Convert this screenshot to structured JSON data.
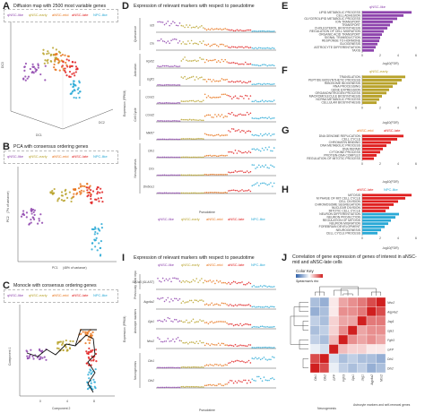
{
  "colors": {
    "qnsc_like": "#8e44ad",
    "qnsc_early": "#b8a22a",
    "ansc_mid": "#e8731a",
    "ansc_late": "#e02020",
    "npc_like": "#2aa9d6"
  },
  "panels": {
    "A": {
      "label": "A",
      "title": "Diffusion map with 2500 most variable genes",
      "axes": [
        "DC1",
        "DC2",
        "DC3"
      ]
    },
    "B": {
      "label": "B",
      "title": "PCA with consensus ordering genes",
      "xlabel": "PC1",
      "xnote": "(48% of variance)",
      "ylabel": "PC2",
      "ynote": "(7% of variance)"
    },
    "C": {
      "label": "C",
      "title": "Monocle with consensus ordering genes",
      "xlabel": "Component 2",
      "ylabel": "Component 1",
      "xticks": [
        "0",
        "4",
        "8"
      ]
    },
    "D": {
      "label": "D",
      "title": "Expression of relevant markers with respect to pseudotime",
      "groups": [
        "Quiescence",
        "Activation",
        "Cell Cycle",
        "Neurogenesis"
      ],
      "genes": [
        "Id3",
        "Clu",
        "Rpl32",
        "Eglf1",
        "Ccnd1",
        "Ccnd2",
        "Mki67",
        "Dlx1",
        "Dcx",
        "Dlx6os1"
      ],
      "ylabel": "Expression (FPKM)",
      "xlabel": "Pseudotime"
    },
    "E": {
      "label": "E",
      "legend": "qNSC-like",
      "xlabel": "-log10(FDR)"
    },
    "F": {
      "label": "F",
      "legend": "qNSC-early",
      "xlabel": "-log10(FDR)"
    },
    "G": {
      "label": "G",
      "legend_a": "aNSC-mid",
      "legend_b": "aNSC-late",
      "xlabel": "-log10(FDR)"
    },
    "H": {
      "label": "H",
      "legend_a": "aNSC-late",
      "legend_b": "NPC-like",
      "xlabel": "-log10(FDR)"
    },
    "I": {
      "label": "I",
      "title": "Expression of relevant markers with respect to pseudotime",
      "groups": [
        "Previously used reporters",
        "Astrocyte markers",
        "Neurogenesis"
      ],
      "genes": [
        "Slc1a3 (GLAST)",
        "Aqp4a2",
        "Gja1",
        "Ntsr2",
        "Dlx1",
        "Dlx2"
      ],
      "ylabel": "Expression (FPKM)",
      "xlabel": "Pseudotime"
    },
    "J": {
      "label": "J",
      "title": "Correlation of gene expression of genes of interest in aNSC-mid and aNSC-late cells",
      "colorkey": "Color Key",
      "spearman": "Spearman's rho",
      "row_genes": [
        "Ntsr2",
        "Aqp4a2",
        "Jag1",
        "Gja1",
        "Fgfr3",
        "GFP",
        "Dlx1",
        "Dlx2"
      ],
      "col_genes": [
        "Dlx1",
        "Dlx2",
        "GFP",
        "Fgfr3",
        "Gja1",
        "Jag1",
        "Aqp4a2",
        "Ntsr2"
      ],
      "group_neuro": "Neurogenesis",
      "group_astro": "Astrocyte markers and self-renewal genes"
    }
  },
  "legend_items": [
    "qNSC-like",
    "qNSC-early",
    "aNSC-mid",
    "aNSC-late",
    "NPC-like"
  ],
  "stage_labels": [
    "qNSC-like",
    "qNSC-early",
    "aNSC-mid",
    "aNSC-late",
    "NPC-like"
  ],
  "go_terms": {
    "E": [
      "LIPID METABOLIC PROCESS",
      "CELL ADHESION",
      "GLYCEROLIPID METABOLIC PROCESS",
      "ION TRANSPORT",
      "TRANSPORT",
      "CHOLESTEROL BIOSYNTHESIS",
      "REGULATION OF CELL MIGRATION",
      "ORGANIC ACID TRANSPORT",
      "SIGNAL TRANSDUCTION",
      "RESPONSE TO HORMONE",
      "GLIOGENESIS",
      "ASTROCYTE DIFFERENTIATION",
      "TAXIS"
    ],
    "F": [
      "TRANSLATION",
      "PEPTIDE BIOSYNTHETIC PROCESS",
      "RIBOSOME BIOGENESIS",
      "RNA PROCESSING",
      "GENE EXPRESSION",
      "ORGANONITROGEN PROCESS",
      "MACROMOLECULE BIOSYNTHESIS",
      "NCRNA METABOLIC PROCESS",
      "CELLULAR BIOSYNTHESIS"
    ],
    "G": [
      "DNA GENOME REPLICATION",
      "CELL CYCLE",
      "CHROMATIN BINDING",
      "DNA METABOLIC PROCESS",
      "DNA REPAIR",
      "CYTOKINE PROCESS",
      "PROTEIN-DNA COMPLEX",
      "REGULATION OF MITOTIC PROCESS"
    ],
    "H": [
      "MITOSIS",
      "M PHASE OF MIT CELL CYCLE",
      "CELL DIVISION",
      "CHROMOSOME SEGREGATION",
      "NUCLEAR DIVISION",
      "MITOTIC CELL CYCLE",
      "NEURON DIFFERENTIATION",
      "NEURON PROJECTION",
      "REGULATION OF MITOSIS",
      "NEURON MIGRATION",
      "FOREBRAIN DEVELOPMENT",
      "NEUROGENESIS",
      "CELL CYCLE PROCESS"
    ]
  },
  "chart_data": [
    {
      "type": "bar",
      "panel": "E",
      "series": [
        {
          "name": "qNSC-like",
          "values": [
            5.5,
            4.6,
            3.9,
            3.4,
            3.1,
            2.8,
            2.4,
            2.2,
            2.0,
            1.9,
            1.7,
            1.5,
            1.3
          ]
        }
      ]
    },
    {
      "type": "bar",
      "panel": "F",
      "series": [
        {
          "name": "qNSC-early",
          "values": [
            4.8,
            4.4,
            3.9,
            3.4,
            3.0,
            2.7,
            2.2,
            1.9,
            1.6
          ]
        }
      ]
    },
    {
      "type": "bar",
      "panel": "G",
      "series": [
        {
          "name": "aNSC-mid",
          "values": [
            0,
            0,
            0,
            0,
            0,
            0,
            0,
            0
          ]
        },
        {
          "name": "aNSC-late",
          "values": [
            4.6,
            3.9,
            3.2,
            2.7,
            2.3,
            2.0,
            1.6,
            1.3
          ]
        }
      ]
    },
    {
      "type": "bar",
      "panel": "H",
      "series": [
        {
          "name": "aNSC-late",
          "values": [
            5.5,
            4.8,
            4.0,
            3.5,
            3.0,
            2.6,
            0,
            0,
            0,
            0,
            0,
            0,
            0
          ]
        },
        {
          "name": "NPC-like",
          "values": [
            0,
            0,
            0,
            0,
            0,
            0,
            4.1,
            3.7,
            3.2,
            2.9,
            2.5,
            2.1,
            1.7
          ]
        }
      ]
    },
    {
      "type": "heatmap",
      "panel": "J",
      "rows": [
        "Ntsr2",
        "Aqp4a2",
        "Jag1",
        "Gja1",
        "Fgfr3",
        "GFP",
        "Dlx1",
        "Dlx2"
      ],
      "cols": [
        "Dlx1",
        "Dlx2",
        "GFP",
        "Fgfr3",
        "Gja1",
        "Jag1",
        "Aqp4a2",
        "Ntsr2"
      ],
      "values": [
        [
          -0.4,
          -0.5,
          0.1,
          0.4,
          0.5,
          0.6,
          0.8,
          1.0
        ],
        [
          -0.5,
          -0.4,
          0.1,
          0.5,
          0.5,
          0.6,
          1.0,
          0.8
        ],
        [
          -0.3,
          -0.4,
          0.2,
          0.4,
          0.4,
          1.0,
          0.6,
          0.6
        ],
        [
          -0.4,
          -0.3,
          0.2,
          0.5,
          1.0,
          0.4,
          0.5,
          0.5
        ],
        [
          -0.3,
          -0.4,
          0.3,
          1.0,
          0.5,
          0.4,
          0.5,
          0.4
        ],
        [
          -0.1,
          -0.2,
          1.0,
          0.3,
          0.2,
          0.2,
          0.1,
          0.1
        ],
        [
          0.8,
          1.0,
          -0.2,
          -0.4,
          -0.3,
          -0.4,
          -0.4,
          -0.5
        ],
        [
          1.0,
          0.8,
          -0.1,
          -0.3,
          -0.4,
          -0.3,
          -0.5,
          -0.4
        ]
      ]
    }
  ]
}
